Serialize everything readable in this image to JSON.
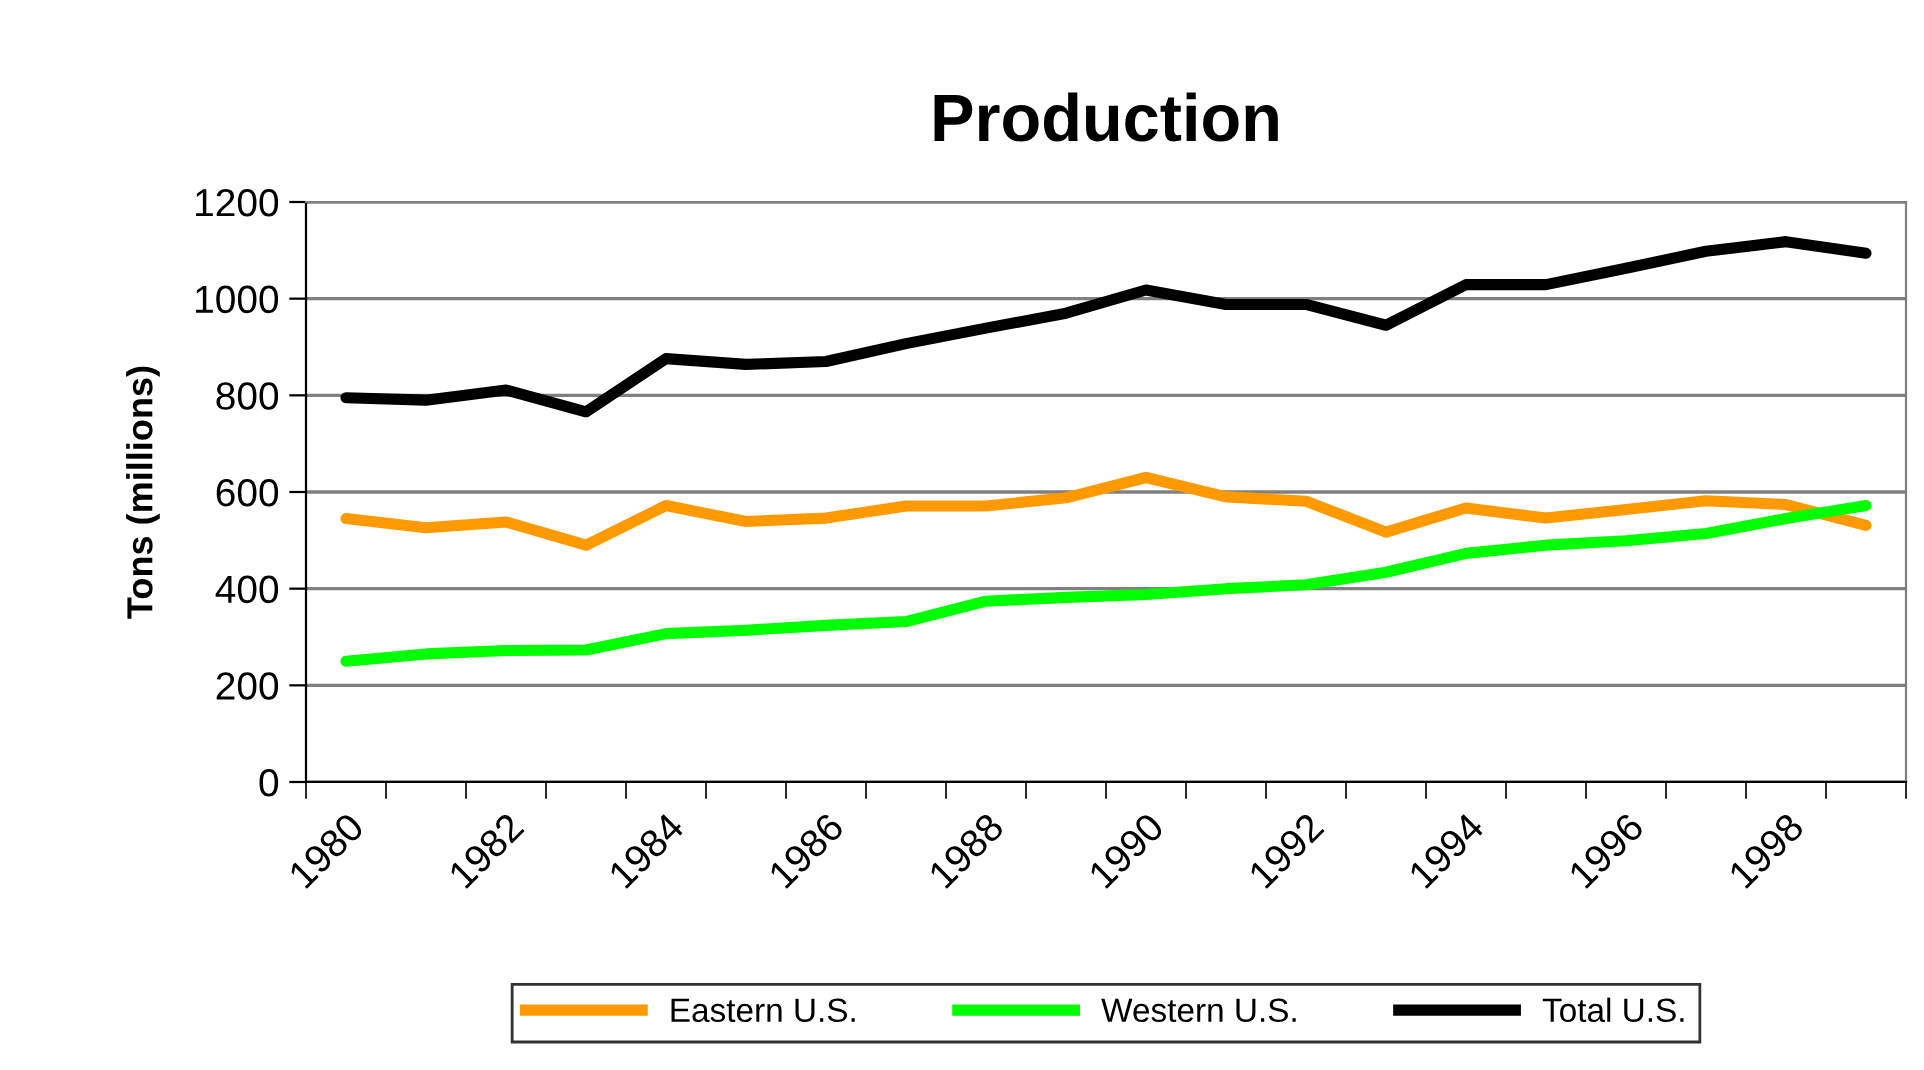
{
  "chart_data": {
    "type": "line",
    "title": "Production",
    "ylabel": "Tons (millions)",
    "categories": [
      "1980",
      null,
      "1982",
      null,
      "1984",
      null,
      "1986",
      null,
      "1988",
      null,
      "1990",
      null,
      "1992",
      null,
      "1994",
      null,
      "1996",
      null,
      "1998",
      null
    ],
    "series": [
      {
        "name": "Eastern U.S.",
        "color": "#ff9900",
        "values": [
          545,
          526,
          538,
          490,
          572,
          539,
          546,
          571,
          571,
          588,
          630,
          590,
          581,
          517,
          567,
          546,
          564,
          582,
          574,
          531
        ]
      },
      {
        "name": "Western U.S.",
        "color": "#00ff00",
        "values": [
          250,
          265,
          272,
          273,
          307,
          314,
          324,
          332,
          374,
          382,
          388,
          400,
          408,
          434,
          473,
          490,
          499,
          514,
          545,
          572
        ]
      },
      {
        "name": "Total U.S.",
        "color": "#000000",
        "values": [
          795,
          790,
          811,
          766,
          876,
          864,
          870,
          907,
          939,
          970,
          1018,
          988,
          988,
          945,
          1029,
          1029,
          1063,
          1098,
          1118,
          1094
        ]
      }
    ],
    "ylim": [
      0,
      1200
    ],
    "yticks": [
      0,
      200,
      400,
      600,
      800,
      1000,
      1200
    ],
    "grid": "y",
    "legend": "bottom",
    "marker": "none",
    "line_style": "solid"
  }
}
